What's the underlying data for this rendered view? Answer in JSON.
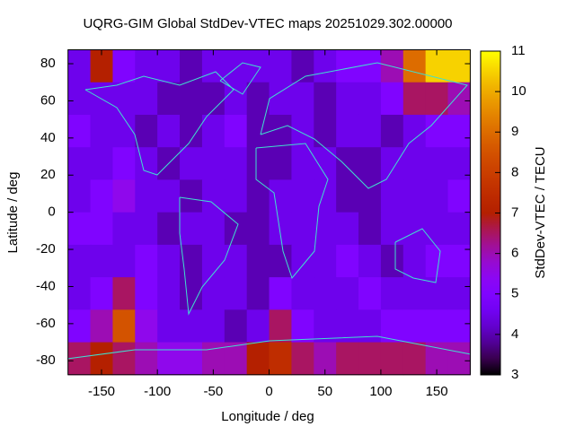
{
  "chart_data": {
    "type": "heatmap",
    "title": "UQRG-GIM Global StdDev-VTEC maps 20251029.302.00000",
    "x_label": "Longitude / deg",
    "y_label": "Latitude / deg",
    "colorbar_label": "StdDev-VTEC / TECU",
    "xlim": [
      -180,
      180
    ],
    "xticks": [
      -150,
      -100,
      -50,
      0,
      50,
      100,
      150
    ],
    "ylim": [
      -87.5,
      87.5
    ],
    "yticks": [
      -80,
      -60,
      -40,
      -20,
      0,
      20,
      40,
      60,
      80
    ],
    "cblim": [
      3,
      11
    ],
    "cbticks": [
      3,
      4,
      5,
      6,
      7,
      8,
      9,
      10,
      11
    ],
    "x": [
      -170,
      -150,
      -130,
      -110,
      -90,
      -70,
      -50,
      -30,
      -10,
      10,
      30,
      50,
      70,
      90,
      110,
      130,
      150,
      170
    ],
    "y": [
      78.75,
      61.25,
      43.75,
      26.25,
      8.75,
      -8.75,
      -26.25,
      -43.75,
      -61.25,
      -78.75
    ],
    "z": [
      [
        4.5,
        7,
        5,
        4.5,
        4.5,
        4,
        4.5,
        4.5,
        4.5,
        4.5,
        4,
        4.5,
        5,
        5,
        6,
        9,
        10.5,
        10.5
      ],
      [
        4.5,
        4.5,
        4.5,
        4.5,
        4,
        4,
        4,
        4.5,
        4,
        4.5,
        4.5,
        4,
        4.5,
        4.5,
        5,
        6.5,
        6.5,
        6
      ],
      [
        5,
        4.5,
        4.5,
        4,
        4.5,
        4,
        4.5,
        5,
        4,
        4,
        4.5,
        4,
        4.5,
        4.5,
        4,
        4.5,
        5,
        5
      ],
      [
        4.5,
        4.5,
        5,
        4.5,
        4,
        4.5,
        4.5,
        4.5,
        4,
        4,
        4.5,
        4.5,
        4,
        4,
        4.5,
        4.5,
        4.5,
        4.5
      ],
      [
        4.5,
        5,
        5.5,
        4.5,
        4.5,
        4,
        4.5,
        4.5,
        4,
        4.5,
        4.5,
        4.5,
        4,
        4,
        4.5,
        4.5,
        4.5,
        5
      ],
      [
        5,
        5,
        4.5,
        4.5,
        4,
        4.5,
        4.5,
        4,
        4,
        4.5,
        4.5,
        4.5,
        4.5,
        4,
        4.5,
        4.5,
        4.5,
        4.5
      ],
      [
        4.5,
        4.5,
        4.5,
        5,
        4.5,
        4,
        4.5,
        4.5,
        4,
        4,
        4.5,
        4.5,
        5,
        4.5,
        4,
        4.5,
        5,
        5
      ],
      [
        4.5,
        5,
        6.5,
        5,
        4.5,
        4,
        4.5,
        4.5,
        4,
        5,
        4.5,
        4.5,
        4.5,
        5,
        4.5,
        4.5,
        4.5,
        4.5
      ],
      [
        5,
        6,
        8.5,
        5.5,
        4.5,
        4.5,
        4.5,
        4,
        4.5,
        6.5,
        5,
        4.5,
        4.5,
        4.5,
        5,
        5,
        5,
        5
      ],
      [
        6.5,
        7,
        6.5,
        6,
        5.5,
        5.5,
        6,
        6,
        7,
        7.5,
        6.5,
        6,
        6.5,
        6.5,
        6.5,
        6.5,
        6,
        6
      ]
    ]
  }
}
